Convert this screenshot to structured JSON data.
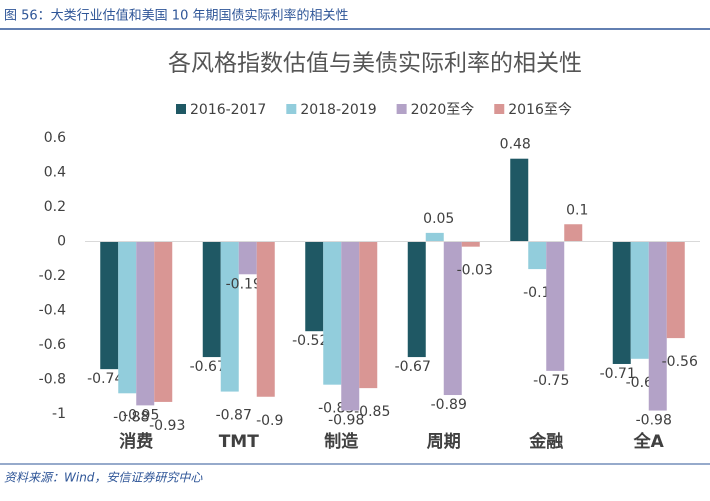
{
  "figure_label": "图 56：大类行业估值和美国 10 年期国债实际利率的相关性",
  "source": "资料来源：Wind，安信证券研究中心",
  "chart_data": {
    "type": "bar",
    "title": "各风格指数估值与美债实际利率的相关性",
    "categories": [
      "消费",
      "TMT",
      "制造",
      "周期",
      "金融",
      "全A"
    ],
    "series": [
      {
        "name": "2016-2017",
        "color": "#1f5864",
        "values": [
          -0.74,
          -0.67,
          -0.52,
          -0.67,
          0.48,
          -0.71
        ]
      },
      {
        "name": "2018-2019",
        "color": "#92cddc",
        "values": [
          -0.88,
          -0.87,
          -0.83,
          0.05,
          -0.16,
          -0.68
        ]
      },
      {
        "name": "2020至今",
        "color": "#b3a2c7",
        "values": [
          -0.95,
          -0.19,
          -0.98,
          -0.89,
          -0.75,
          -0.98
        ]
      },
      {
        "name": "2016至今",
        "color": "#d99694",
        "values": [
          -0.93,
          -0.9,
          -0.85,
          -0.03,
          0.1,
          -0.56
        ]
      }
    ],
    "ylim": [
      -1,
      0.6
    ],
    "yticks": [
      -1,
      -0.8,
      -0.6,
      -0.4,
      -0.2,
      0,
      0.2,
      0.4,
      0.6
    ],
    "grid": false,
    "legend": "top"
  }
}
